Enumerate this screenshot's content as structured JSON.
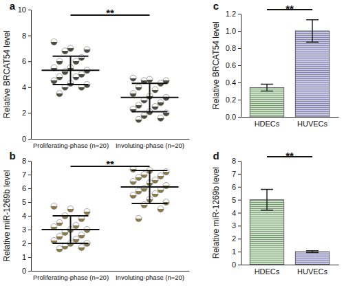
{
  "chart_data": [
    {
      "type": "dot",
      "panel": "a",
      "ylabel": "Relative BRCAT54 level",
      "categories": [
        "Proliferating-phase (n=20)",
        "Involuting-phase (n=20)"
      ],
      "groups": [
        {
          "values": [
            7.5,
            7.0,
            6.9,
            6.8,
            6.3,
            6.0,
            6.0,
            5.5,
            5.5,
            5.3,
            5.2,
            5.0,
            4.8,
            4.8,
            4.5,
            4.3,
            4.2,
            4.0,
            4.0,
            3.5
          ],
          "mean": 5.3,
          "sd": 1.1,
          "color": "#4a4a3c"
        },
        {
          "values": [
            4.7,
            4.6,
            4.5,
            4.5,
            4.3,
            4.0,
            3.8,
            3.5,
            3.3,
            3.2,
            3.0,
            2.8,
            2.6,
            2.5,
            2.3,
            2.1,
            2.0,
            1.8,
            1.6,
            1.5
          ],
          "mean": 3.2,
          "sd": 1.1,
          "color": "#4a4a3c"
        }
      ],
      "ylim": [
        0,
        10
      ],
      "yticks": [
        0,
        2,
        4,
        6,
        8,
        10
      ],
      "annotation": "**"
    },
    {
      "type": "dot",
      "panel": "b",
      "ylabel": "Relative miR-1269b level",
      "categories": [
        "Proliferating-phase (n=20)",
        "Involuting-phase (n=20)"
      ],
      "groups": [
        {
          "values": [
            4.7,
            4.5,
            4.3,
            4.0,
            3.8,
            3.5,
            3.3,
            3.2,
            3.0,
            3.0,
            2.8,
            2.6,
            2.5,
            2.3,
            2.2,
            2.0,
            2.0,
            1.8,
            1.7,
            1.6
          ],
          "mean": 3.0,
          "sd": 1.0,
          "color": "#8c7a4a"
        },
        {
          "values": [
            7.4,
            7.3,
            7.2,
            7.0,
            6.9,
            6.8,
            6.6,
            6.5,
            6.4,
            6.2,
            6.0,
            5.9,
            5.8,
            5.6,
            5.5,
            5.2,
            5.0,
            4.8,
            4.5,
            3.8
          ],
          "mean": 6.1,
          "sd": 1.2,
          "color": "#8c7a4a"
        }
      ],
      "ylim": [
        0,
        8
      ],
      "yticks": [
        0,
        1,
        2,
        3,
        4,
        5,
        6,
        7,
        8
      ],
      "annotation": "**"
    },
    {
      "type": "bar",
      "panel": "c",
      "ylabel": "Relative BRCAT54 level",
      "categories": [
        "HDECs",
        "HUVECs"
      ],
      "values": [
        0.34,
        1.0
      ],
      "errors": [
        0.04,
        0.13
      ],
      "colors": [
        "#c6e6bf",
        "#c6c6ee"
      ],
      "ylim": [
        0,
        1.2
      ],
      "yticks": [
        {
          "value": 0,
          "label": "0.0"
        },
        0.2,
        0.4,
        0.6,
        0.8,
        {
          "value": 1,
          "label": "1.0"
        },
        1.2
      ],
      "annotation": "**"
    },
    {
      "type": "bar",
      "panel": "d",
      "ylabel": "Relative miR-1269b level",
      "categories": [
        "HDECs",
        "HUVECs"
      ],
      "values": [
        5.0,
        1.0
      ],
      "errors": [
        0.8,
        0.07
      ],
      "colors": [
        "#c6e6bf",
        "#c6c6ee"
      ],
      "ylim": [
        0,
        8
      ],
      "yticks": [
        0,
        1,
        2,
        3,
        4,
        5,
        6,
        7,
        8
      ],
      "annotation": "**"
    }
  ]
}
